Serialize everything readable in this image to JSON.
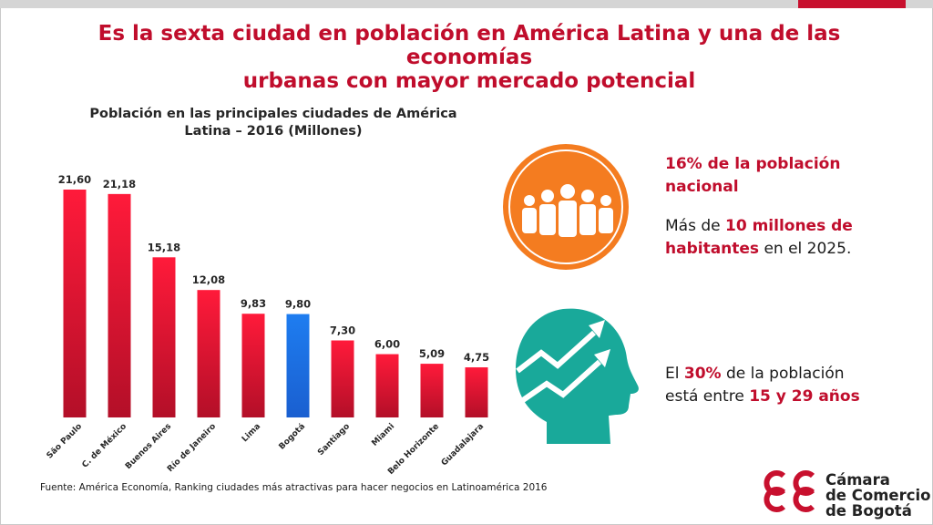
{
  "slide": {
    "title_line1": "Es la sexta ciudad en población en América Latina y una de las economías",
    "title_line2": "urbanas con mayor mercado potencial",
    "source": "Fuente: América Economía, Ranking ciudades más atractivas para hacer negocios en Latinoamérica 2016"
  },
  "colors": {
    "accent": "#c00d2c",
    "bar_default": "#e8102e",
    "bar_highlight": "#1a73e8",
    "orange": "#f47c20",
    "teal": "#19a99a"
  },
  "chart_data": {
    "type": "bar",
    "title_line1": "Población en las principales ciudades de América",
    "title_line2": "Latina – 2016 (Millones)",
    "categories": [
      "São Paulo",
      "C. de México",
      "Buenos Aires",
      "Río de Janeiro",
      "Lima",
      "Bogotá",
      "Santiago",
      "Miami",
      "Belo Horizonte",
      "Guadalajara"
    ],
    "values": [
      21.6,
      21.18,
      15.18,
      12.08,
      9.83,
      9.8,
      7.3,
      6.0,
      5.09,
      4.75
    ],
    "value_labels": [
      "21,60",
      "21,18",
      "15,18",
      "12,08",
      "9,83",
      "9,80",
      "7,30",
      "6,00",
      "5,09",
      "4,75"
    ],
    "highlight_category": "Bogotá",
    "ylim": [
      0,
      21.6
    ],
    "xlabel": "",
    "ylabel": ""
  },
  "stats": {
    "stat1_line1": "16% de la población",
    "stat1_line2": "nacional",
    "stat2_pre": "Más de ",
    "stat2_hl1": "10 millones de",
    "stat2_hl2": "habitantes",
    "stat2_post": " en el 2025.",
    "stat3_pre": "El ",
    "stat3_hl1": "30%",
    "stat3_mid": " de la población",
    "stat3_pre2": "está entre ",
    "stat3_hl2": "15 y 29 años"
  },
  "icons": {
    "people": "people-group-icon",
    "head": "head-growth-icon",
    "logo": "ccb-logo-icon"
  },
  "logo": {
    "line1": "Cámara",
    "line2": "de Comercio",
    "line3": "de Bogotá"
  }
}
